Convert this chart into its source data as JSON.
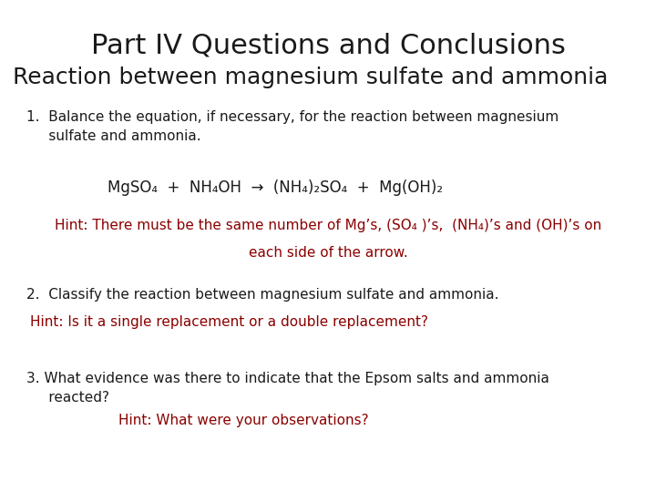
{
  "title": "Part IV Questions and Conclusions",
  "subtitle": "Reaction between magnesium sulfate and ammonia",
  "background_color": "#ffffff",
  "black_color": "#1a1a1a",
  "red_color": "#8b0000",
  "title_fontsize": 22,
  "subtitle_fontsize": 18,
  "body_fontsize": 11,
  "equation_fontsize": 12,
  "hint_fontsize": 11,
  "q1_text": "1.  Balance the equation, if necessary, for the reaction between magnesium\n     sulfate and ammonia.",
  "equation_line": "MgSO₄  +  NH₄OH  →  (NH₄)₂SO₄  +  Mg(OH)₂",
  "hint1_line1": "Hint: There must be the same number of Mg’s, (SO₄ )’s,  (NH₄)’s and (OH)’s on",
  "hint1_line2": "each side of the arrow.",
  "q2_text": "2.  Classify the reaction between magnesium sulfate and ammonia.",
  "hint2_text": "Hint: Is it a single replacement or a double replacement?",
  "q3_text": "3. What evidence was there to indicate that the Epsom salts and ammonia\n     reacted?",
  "hint3_text": "Hint: What were your observations?"
}
